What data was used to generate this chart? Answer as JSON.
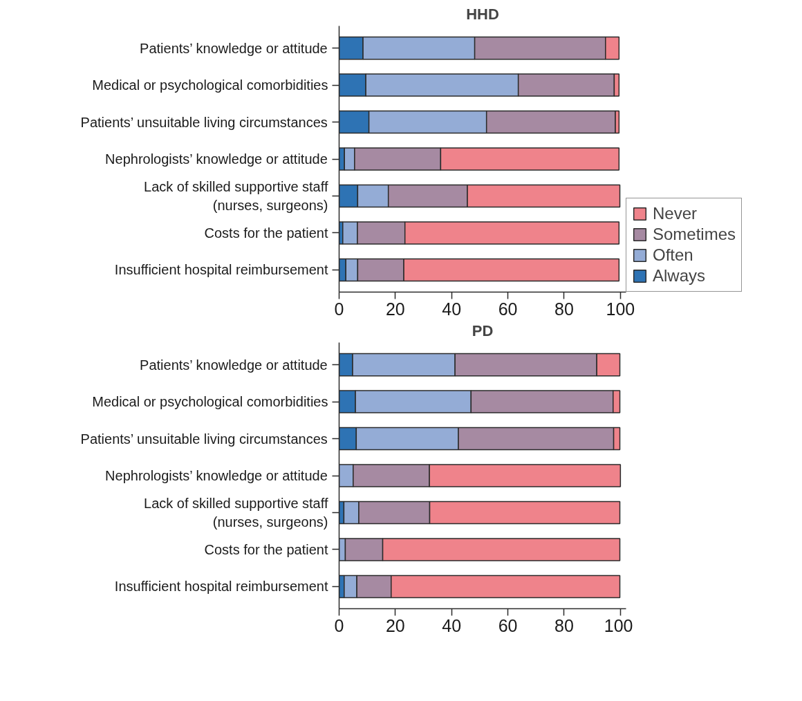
{
  "chart_data": [
    {
      "type": "bar",
      "title": "HHD",
      "orientation": "horizontal",
      "stacked": true,
      "categories": [
        "Patients’ knowledge or attitude",
        "Medical or psychological comorbidities",
        "Patients’ unsuitable living circumstances",
        "Nephrologists’ knowledge or attitude",
        "Lack of skilled supportive staff\n(nurses, surgeons)",
        "Costs for the patient",
        "Insufficient hospital reimbursement"
      ],
      "series": [
        {
          "name": "Always",
          "color": "#2e73b4",
          "values": [
            8.5,
            9.5,
            10.6,
            1.9,
            6.6,
            1.3,
            2.4
          ]
        },
        {
          "name": "Often",
          "color": "#94acd6",
          "values": [
            39.7,
            54.2,
            41.8,
            3.6,
            10.9,
            5.2,
            4.2
          ]
        },
        {
          "name": "Sometimes",
          "color": "#a68aa2",
          "values": [
            46.5,
            34.1,
            45.8,
            30.6,
            28.1,
            16.9,
            16.4
          ]
        },
        {
          "name": "Never",
          "color": "#ef838b",
          "values": [
            4.8,
            1.7,
            1.3,
            63.4,
            54.2,
            76.1,
            76.5
          ]
        }
      ],
      "xlim": [
        0,
        102
      ],
      "xticks": [
        0,
        20,
        40,
        60,
        80,
        100
      ],
      "grid": false,
      "legend": "right"
    },
    {
      "type": "bar",
      "title": "PD",
      "orientation": "horizontal",
      "stacked": true,
      "categories": [
        "Patients’ knowledge or attitude",
        "Medical or psychological comorbidities",
        "Patients’ unsuitable living circumstances",
        "Nephrologists’ knowledge or attitude",
        "Lack of skilled supportive staff\n(nurses, surgeons)",
        "Costs for the patient",
        "Insufficient hospital reimbursement"
      ],
      "series": [
        {
          "color": "#2e73b4",
          "values": [
            4.8,
            5.8,
            6.1,
            0,
            1.7,
            0,
            1.8
          ]
        },
        {
          "color": "#94acd6",
          "values": [
            36.4,
            41.1,
            36.3,
            5.0,
            5.3,
            2.2,
            4.5
          ]
        },
        {
          "color": "#a68aa2",
          "values": [
            50.4,
            50.5,
            55.2,
            27.1,
            25.2,
            13.3,
            12.2
          ]
        },
        {
          "color": "#ef838b",
          "values": [
            8.2,
            2.4,
            2.2,
            67.9,
            67.6,
            84.3,
            81.3
          ]
        }
      ],
      "xlim": [
        0,
        102
      ],
      "xticks": [
        0,
        20,
        40,
        60,
        80,
        100
      ],
      "grid": false,
      "legend": false
    }
  ]
}
